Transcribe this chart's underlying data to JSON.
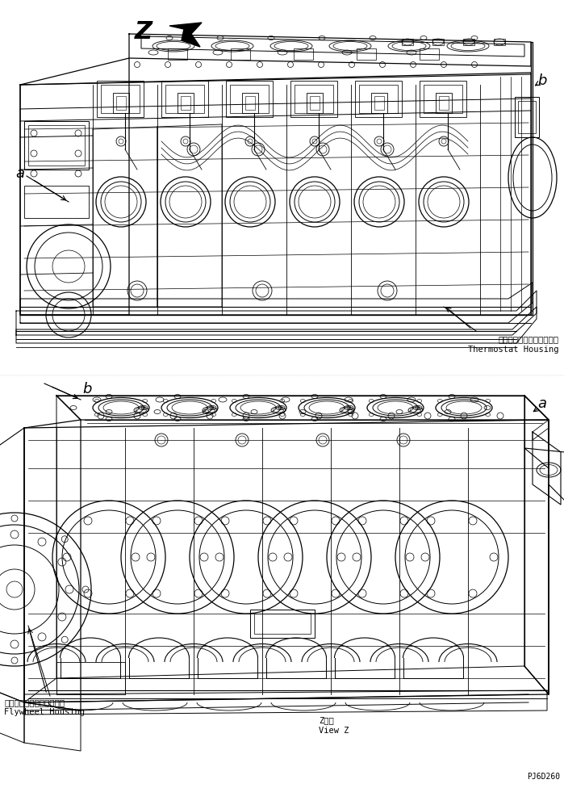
{
  "bg_color": "#ffffff",
  "line_color": "#000000",
  "fig_width": 6.99,
  "fig_height": 9.76,
  "dpi": 100,
  "label_Z_top": "Z",
  "label_a_top": "a",
  "label_b_top": "b",
  "label_a_bottom": "a",
  "label_b_bottom": "b",
  "thermostat_jp": "サーモスタットハウジング",
  "thermostat_en": "Thermostat Housing",
  "flywheel_jp": "フライホイールハウジング",
  "flywheel_en": "Flywheel Housing",
  "view_z_jp": "Z　視",
  "view_z_en": "View Z",
  "part_num": "PJ6D260",
  "font_size_italic": 13,
  "font_size_small": 7.5,
  "font_size_partnum": 7,
  "font_size_Z": 22
}
